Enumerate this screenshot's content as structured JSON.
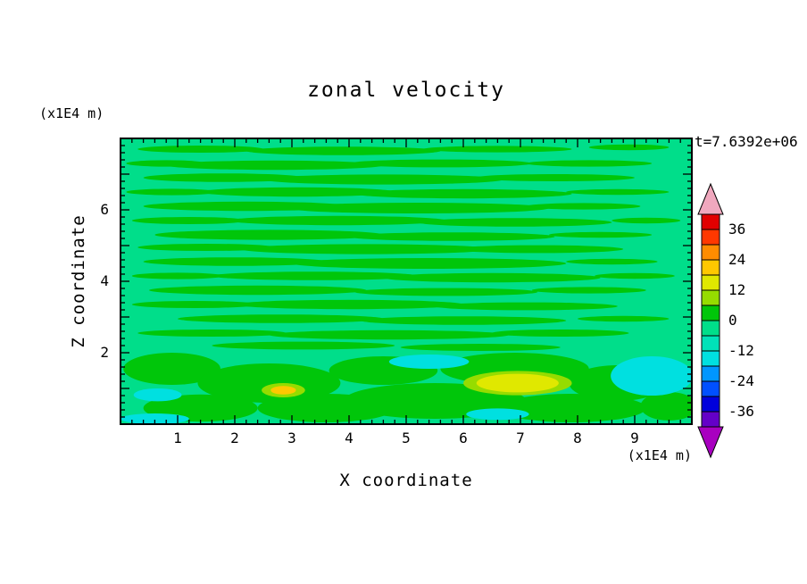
{
  "title": "zonal velocity",
  "timestamp": "t=7.6392e+06",
  "axes": {
    "x_label": "X coordinate",
    "x_unit": "(x1E4 m)",
    "y_label": "Z coordinate",
    "y_unit": "(x1E4 m)",
    "x_ticks": [
      1,
      2,
      3,
      4,
      5,
      6,
      7,
      8,
      9
    ],
    "y_ticks": [
      2,
      4,
      6
    ],
    "x_range": [
      0,
      10
    ],
    "y_range": [
      0,
      8
    ],
    "x_minor_tick_step": 0.2,
    "y_minor_tick_step": 0.2
  },
  "colorbar": {
    "labels": [
      36,
      24,
      12,
      0,
      -12,
      -24,
      -36
    ],
    "min": -42,
    "max": 42,
    "top_arrow_color": "#F0A8BE",
    "bottom_arrow_color": "#A800C0",
    "segments": [
      {
        "from": -42,
        "to": -36,
        "color": "#6400C8"
      },
      {
        "from": -36,
        "to": -30,
        "color": "#0000DC"
      },
      {
        "from": -30,
        "to": -24,
        "color": "#0050FF"
      },
      {
        "from": -24,
        "to": -18,
        "color": "#0096FF"
      },
      {
        "from": -18,
        "to": -12,
        "color": "#00E0E0"
      },
      {
        "from": -12,
        "to": -6,
        "color": "#00E2B9"
      },
      {
        "from": -6,
        "to": 0,
        "color": "#00DE8A"
      },
      {
        "from": 0,
        "to": 6,
        "color": "#00C60A"
      },
      {
        "from": 6,
        "to": 12,
        "color": "#96DC00"
      },
      {
        "from": 12,
        "to": 18,
        "color": "#E0E800"
      },
      {
        "from": 18,
        "to": 24,
        "color": "#FFC800"
      },
      {
        "from": 24,
        "to": 30,
        "color": "#FF8C00"
      },
      {
        "from": 30,
        "to": 36,
        "color": "#FF3800"
      },
      {
        "from": 36,
        "to": 42,
        "color": "#E10000"
      }
    ]
  },
  "chart_data": {
    "type": "filled_contour",
    "field": "zonal velocity",
    "contour_interval": 6,
    "value_range": [
      -42,
      42
    ],
    "background_level": "-6..0",
    "background_color": "#00DE8A",
    "patches": [
      {
        "level": "0..6",
        "color": "#00C60A",
        "ellipses": [
          [
            1.4,
            7.7,
            1.1,
            0.1
          ],
          [
            3.9,
            7.65,
            1.7,
            0.12
          ],
          [
            6.6,
            7.7,
            1.3,
            0.09
          ],
          [
            8.9,
            7.75,
            0.7,
            0.08
          ],
          [
            0.8,
            7.3,
            0.7,
            0.09
          ],
          [
            2.7,
            7.25,
            1.9,
            0.13
          ],
          [
            5.6,
            7.3,
            1.6,
            0.11
          ],
          [
            8.2,
            7.3,
            1.1,
            0.09
          ],
          [
            1.8,
            6.9,
            1.4,
            0.12
          ],
          [
            4.6,
            6.85,
            2.1,
            0.14
          ],
          [
            7.6,
            6.9,
            1.4,
            0.1
          ],
          [
            0.9,
            6.5,
            0.8,
            0.09
          ],
          [
            3.1,
            6.5,
            1.7,
            0.13
          ],
          [
            6.0,
            6.45,
            1.9,
            0.13
          ],
          [
            8.7,
            6.5,
            0.9,
            0.08
          ],
          [
            2.2,
            6.1,
            1.8,
            0.13
          ],
          [
            5.2,
            6.05,
            2.3,
            0.15
          ],
          [
            8.1,
            6.1,
            1.0,
            0.09
          ],
          [
            1.2,
            5.7,
            1.0,
            0.1
          ],
          [
            3.8,
            5.7,
            1.9,
            0.13
          ],
          [
            6.9,
            5.65,
            1.7,
            0.12
          ],
          [
            9.2,
            5.7,
            0.6,
            0.08
          ],
          [
            2.6,
            5.3,
            2.0,
            0.14
          ],
          [
            5.8,
            5.25,
            1.8,
            0.12
          ],
          [
            8.4,
            5.3,
            0.9,
            0.08
          ],
          [
            1.5,
            4.95,
            1.2,
            0.1
          ],
          [
            4.3,
            4.9,
            2.2,
            0.14
          ],
          [
            7.3,
            4.9,
            1.5,
            0.11
          ],
          [
            2.0,
            4.55,
            1.6,
            0.12
          ],
          [
            5.4,
            4.5,
            2.4,
            0.15
          ],
          [
            8.6,
            4.55,
            0.8,
            0.08
          ],
          [
            1.0,
            4.15,
            0.8,
            0.09
          ],
          [
            3.4,
            4.15,
            1.8,
            0.12
          ],
          [
            6.5,
            4.1,
            1.9,
            0.13
          ],
          [
            9.0,
            4.15,
            0.7,
            0.08
          ],
          [
            2.4,
            3.75,
            1.9,
            0.13
          ],
          [
            5.7,
            3.7,
            1.6,
            0.11
          ],
          [
            8.2,
            3.75,
            1.0,
            0.09
          ],
          [
            1.3,
            3.35,
            1.1,
            0.1
          ],
          [
            4.0,
            3.35,
            2.0,
            0.13
          ],
          [
            7.1,
            3.3,
            1.6,
            0.11
          ],
          [
            2.8,
            2.95,
            1.8,
            0.12
          ],
          [
            6.0,
            2.9,
            1.8,
            0.12
          ],
          [
            8.8,
            2.95,
            0.8,
            0.08
          ],
          [
            1.6,
            2.55,
            1.3,
            0.1
          ],
          [
            4.7,
            2.5,
            2.1,
            0.13
          ],
          [
            7.7,
            2.55,
            1.2,
            0.1
          ],
          [
            3.2,
            2.2,
            1.6,
            0.11
          ],
          [
            6.3,
            2.15,
            1.4,
            0.1
          ],
          [
            0.9,
            1.55,
            0.85,
            0.45
          ],
          [
            2.6,
            1.15,
            1.25,
            0.55
          ],
          [
            4.6,
            1.5,
            0.95,
            0.4
          ],
          [
            6.9,
            1.55,
            1.3,
            0.45
          ],
          [
            8.7,
            1.15,
            0.85,
            0.5
          ],
          [
            5.5,
            0.65,
            1.6,
            0.5
          ],
          [
            3.6,
            0.45,
            1.2,
            0.4
          ],
          [
            1.4,
            0.45,
            1.0,
            0.38
          ],
          [
            7.9,
            0.45,
            1.3,
            0.4
          ],
          [
            9.6,
            0.5,
            0.5,
            0.4
          ]
        ]
      },
      {
        "level": "6..12",
        "color": "#96DC00",
        "ellipses": [
          [
            6.95,
            1.15,
            0.95,
            0.34
          ],
          [
            2.85,
            0.95,
            0.38,
            0.2
          ]
        ]
      },
      {
        "level": "12..18",
        "color": "#E0E800",
        "ellipses": [
          [
            6.95,
            1.15,
            0.72,
            0.26
          ]
        ]
      },
      {
        "level": "18..24",
        "color": "#FFC800",
        "ellipses": [
          [
            2.85,
            0.95,
            0.22,
            0.12
          ]
        ]
      },
      {
        "level": "-18..-12",
        "color": "#00E0E0",
        "ellipses": [
          [
            5.4,
            1.75,
            0.7,
            0.2
          ],
          [
            9.3,
            1.35,
            0.72,
            0.55
          ],
          [
            0.65,
            0.82,
            0.42,
            0.18
          ],
          [
            6.6,
            0.28,
            0.55,
            0.16
          ],
          [
            0.6,
            0.15,
            0.6,
            0.15
          ]
        ]
      }
    ]
  }
}
